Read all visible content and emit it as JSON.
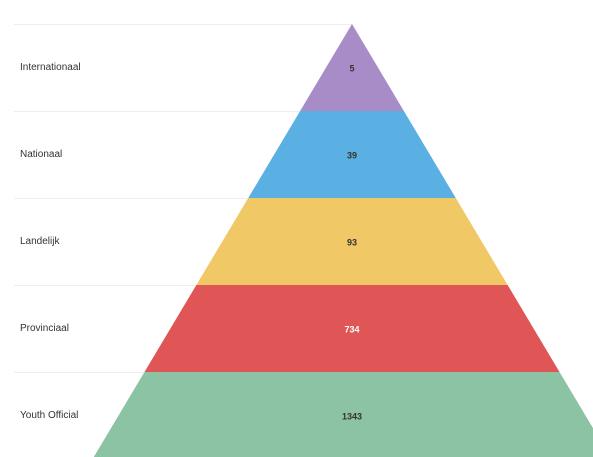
{
  "chart_data": {
    "type": "pyramid",
    "title": "",
    "levels": [
      {
        "label": "Internationaal",
        "value": 5,
        "color": "#a88cc8",
        "value_text_color": "#333333"
      },
      {
        "label": "Nationaal",
        "value": 39,
        "color": "#5ab0e2",
        "value_text_color": "#333333"
      },
      {
        "label": "Landelijk",
        "value": 93,
        "color": "#f0c865",
        "value_text_color": "#333333"
      },
      {
        "label": "Provinciaal",
        "value": 734,
        "color": "#e05555",
        "value_text_color": "#ffffff"
      },
      {
        "label": "Youth Official",
        "value": 1343,
        "color": "#8cc3a5",
        "value_text_color": "#333333"
      }
    ]
  }
}
